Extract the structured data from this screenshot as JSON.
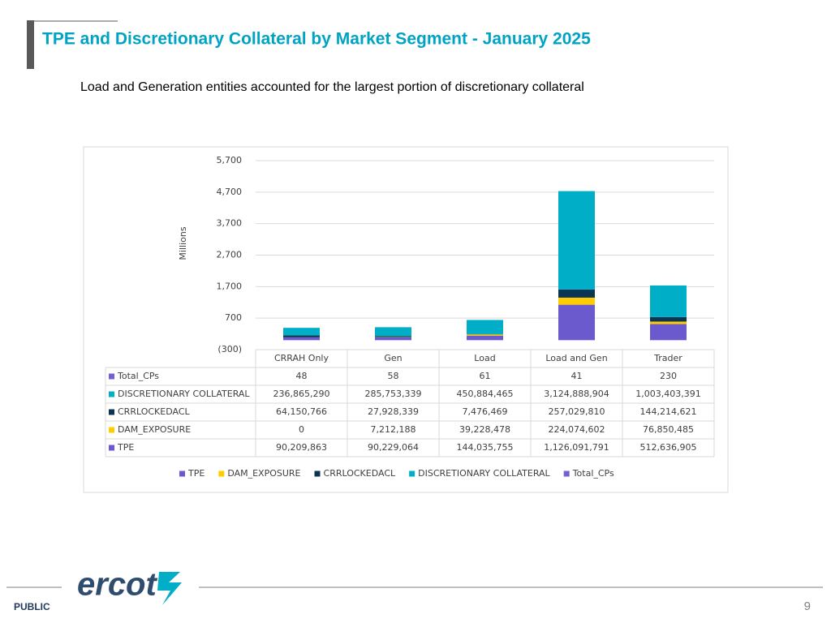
{
  "slide": {
    "title": "TPE and Discretionary Collateral by Market Segment - January 2025",
    "subtitle": "Load and Generation entities accounted for the largest portion of discretionary collateral",
    "logo": "ercot",
    "footer": "PUBLIC",
    "page_number": "9"
  },
  "chart_data": {
    "type": "bar",
    "stacked": true,
    "grid": true,
    "legend": "bottom",
    "y_label": "Millions",
    "categories": [
      "CRRAH Only",
      "Gen",
      "Load",
      "Load and Gen",
      "Trader"
    ],
    "ylim": [
      -300,
      5700
    ],
    "yticks": [
      {
        "value": -300,
        "label": "(300)"
      },
      700,
      {
        "value": 1700,
        "label": "1,700"
      },
      {
        "value": 2700,
        "label": "2,700"
      },
      {
        "value": 3700,
        "label": "3,700"
      },
      {
        "value": 4700,
        "label": "4,700"
      },
      {
        "value": 5700,
        "label": "5,700"
      }
    ],
    "series": [
      {
        "name": "TPE",
        "color": "#6a5acd",
        "values": [
          90.209863,
          90.229064,
          144.035755,
          1126.091791,
          512.636905
        ],
        "value_labels": [
          "90,209,863",
          "90,229,064",
          "144,035,755",
          "1,126,091,791",
          "512,636,905"
        ]
      },
      {
        "name": "DAM_EXPOSURE",
        "color": "#ffcc00",
        "values": [
          0,
          7.212188,
          39.228478,
          224.074602,
          76.850485
        ],
        "value_labels": [
          "0",
          "7,212,188",
          "39,228,478",
          "224,074,602",
          "76,850,485"
        ]
      },
      {
        "name": "CRRLOCKEDACL",
        "color": "#0b3553",
        "values": [
          64.150766,
          27.928339,
          7.476469,
          257.02981,
          144.214621
        ],
        "value_labels": [
          "64,150,766",
          "27,928,339",
          "7,476,469",
          "257,029,810",
          "144,214,621"
        ]
      },
      {
        "name": "DISCRETIONARY COLLATERAL",
        "color": "#00aec7",
        "values": [
          236.86529,
          285.753339,
          450.884465,
          3124.888904,
          1003.403391
        ],
        "value_labels": [
          "236,865,290",
          "285,753,339",
          "450,884,465",
          "3,124,888,904",
          "1,003,403,391"
        ]
      },
      {
        "name": "Total_CPs",
        "color": "#7461d1",
        "values": [
          4.8e-05,
          5.8e-05,
          6.1e-05,
          4.1e-05,
          0.00023
        ],
        "value_labels": [
          "48",
          "58",
          "61",
          "41",
          "230"
        ]
      }
    ]
  }
}
